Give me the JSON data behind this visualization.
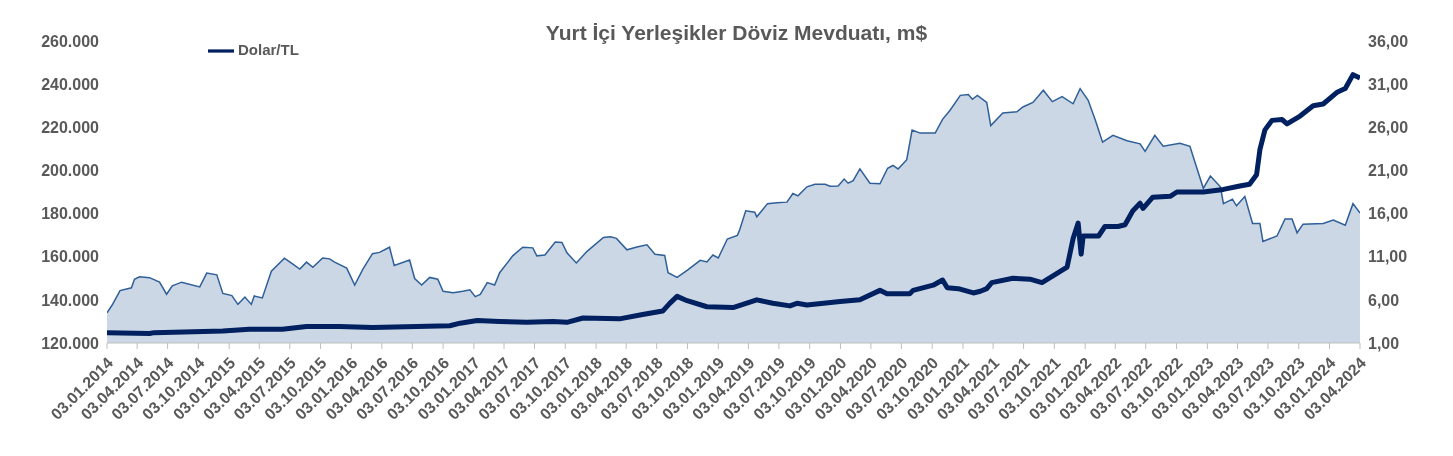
{
  "chart_data": {
    "type": "area",
    "title": "Yurt İçi Yerleşikler Döviz Mevduatı, m$",
    "legend": "top left",
    "grid": false,
    "xlim": [
      "2014-01-03",
      "2024-04-03"
    ],
    "xticks": [
      {
        "value": "2014-01-03",
        "label": "03.01.2014"
      },
      {
        "value": "2014-04-03",
        "label": "03.04.2014"
      },
      {
        "value": "2014-07-03",
        "label": "03.07.2014"
      },
      {
        "value": "2014-10-03",
        "label": "03.10.2014"
      },
      {
        "value": "2015-01-03",
        "label": "03.01.2015"
      },
      {
        "value": "2015-04-03",
        "label": "03.04.2015"
      },
      {
        "value": "2015-07-03",
        "label": "03.07.2015"
      },
      {
        "value": "2015-10-03",
        "label": "03.10.2015"
      },
      {
        "value": "2016-01-03",
        "label": "03.01.2016"
      },
      {
        "value": "2016-04-03",
        "label": "03.04.2016"
      },
      {
        "value": "2016-07-03",
        "label": "03.07.2016"
      },
      {
        "value": "2016-10-03",
        "label": "03.10.2016"
      },
      {
        "value": "2017-01-03",
        "label": "03.01.2017"
      },
      {
        "value": "2017-04-03",
        "label": "03.04.2017"
      },
      {
        "value": "2017-07-03",
        "label": "03.07.2017"
      },
      {
        "value": "2017-10-03",
        "label": "03.10.2017"
      },
      {
        "value": "2018-01-03",
        "label": "03.01.2018"
      },
      {
        "value": "2018-04-03",
        "label": "03.04.2018"
      },
      {
        "value": "2018-07-03",
        "label": "03.07.2018"
      },
      {
        "value": "2018-10-03",
        "label": "03.10.2018"
      },
      {
        "value": "2019-01-03",
        "label": "03.01.2019"
      },
      {
        "value": "2019-04-03",
        "label": "03.04.2019"
      },
      {
        "value": "2019-07-03",
        "label": "03.07.2019"
      },
      {
        "value": "2019-10-03",
        "label": "03.10.2019"
      },
      {
        "value": "2020-01-03",
        "label": "03.01.2020"
      },
      {
        "value": "2020-04-03",
        "label": "03.04.2020"
      },
      {
        "value": "2020-07-03",
        "label": "03.07.2020"
      },
      {
        "value": "2020-10-03",
        "label": "03.10.2020"
      },
      {
        "value": "2021-01-03",
        "label": "03.01.2021"
      },
      {
        "value": "2021-04-03",
        "label": "03.04.2021"
      },
      {
        "value": "2021-07-03",
        "label": "03.07.2021"
      },
      {
        "value": "2021-10-03",
        "label": "03.10.2021"
      },
      {
        "value": "2022-01-03",
        "label": "03.01.2022"
      },
      {
        "value": "2022-04-03",
        "label": "03.04.2022"
      },
      {
        "value": "2022-07-03",
        "label": "03.07.2022"
      },
      {
        "value": "2022-10-03",
        "label": "03.10.2022"
      },
      {
        "value": "2023-01-03",
        "label": "03.01.2023"
      },
      {
        "value": "2023-04-03",
        "label": "03.04.2023"
      },
      {
        "value": "2023-07-03",
        "label": "03.07.2023"
      },
      {
        "value": "2023-10-03",
        "label": "03.10.2023"
      },
      {
        "value": "2024-01-03",
        "label": "03.01.2024"
      },
      {
        "value": "2024-04-03",
        "label": "03.04.2024"
      }
    ],
    "ylim": [
      120000,
      260000
    ],
    "yticks": [
      {
        "value": 120000,
        "label": "120.000"
      },
      {
        "value": 140000,
        "label": "140.000"
      },
      {
        "value": 160000,
        "label": "160.000"
      },
      {
        "value": 180000,
        "label": "180.000"
      },
      {
        "value": 200000,
        "label": "200.000"
      },
      {
        "value": 220000,
        "label": "220.000"
      },
      {
        "value": 240000,
        "label": "240.000"
      },
      {
        "value": 260000,
        "label": "260.000"
      }
    ],
    "y2lim": [
      1,
      36
    ],
    "y2ticks": [
      {
        "value": 1,
        "label": "1,00"
      },
      {
        "value": 6,
        "label": "6,00"
      },
      {
        "value": 11,
        "label": "11,00"
      },
      {
        "value": 16,
        "label": "16,00"
      },
      {
        "value": 21,
        "label": "21,00"
      },
      {
        "value": 26,
        "label": "26,00"
      },
      {
        "value": 31,
        "label": "31,00"
      },
      {
        "value": 36,
        "label": "36,00"
      }
    ],
    "series": [
      {
        "color": "#2f5f98",
        "x": [
          "2014-01-03",
          "2014-01-18",
          "2014-02-11",
          "2014-03-17",
          "2014-03-26",
          "2014-04-10",
          "2014-05-10",
          "2014-06-09",
          "2014-06-30",
          "2014-07-17",
          "2014-08-14",
          "2014-10-07",
          "2014-10-28",
          "2014-11-27",
          "2014-12-15",
          "2015-01-11",
          "2015-01-29",
          "2015-02-19",
          "2015-03-10",
          "2015-03-19",
          "2015-04-12",
          "2015-05-09",
          "2015-06-17",
          "2015-07-08",
          "2015-08-02",
          "2015-08-22",
          "2015-09-10",
          "2015-10-09",
          "2015-10-30",
          "2015-11-14",
          "2015-12-20",
          "2016-01-13",
          "2016-02-06",
          "2016-03-06",
          "2016-03-27",
          "2016-04-26",
          "2016-05-10",
          "2016-06-25",
          "2016-07-10",
          "2016-07-31",
          "2016-08-24",
          "2016-09-17",
          "2016-10-03",
          "2016-11-02",
          "2016-12-01",
          "2016-12-22",
          "2017-01-07",
          "2017-01-22",
          "2017-02-12",
          "2017-03-06",
          "2017-03-21",
          "2017-04-29",
          "2017-05-29",
          "2017-06-28",
          "2017-07-10",
          "2017-08-03",
          "2017-09-03",
          "2017-09-23",
          "2017-10-08",
          "2017-11-05",
          "2017-12-07",
          "2018-01-25",
          "2018-02-15",
          "2018-03-05",
          "2018-04-05",
          "2018-05-05",
          "2018-06-04",
          "2018-06-28",
          "2018-07-27",
          "2018-08-06",
          "2018-09-02",
          "2018-10-02",
          "2018-11-10",
          "2018-11-30",
          "2018-12-18",
          "2019-01-03",
          "2019-01-30",
          "2019-03-01",
          "2019-03-08",
          "2019-03-26",
          "2019-04-22",
          "2019-04-28",
          "2019-05-13",
          "2019-05-30",
          "2019-06-27",
          "2019-07-27",
          "2019-08-14",
          "2019-08-29",
          "2019-09-25",
          "2019-10-19",
          "2019-11-18",
          "2019-12-03",
          "2019-12-27",
          "2020-01-14",
          "2020-01-26",
          "2020-02-10",
          "2020-03-01",
          "2020-03-31",
          "2020-04-30",
          "2020-05-23",
          "2020-06-08",
          "2020-06-23",
          "2020-07-08",
          "2020-07-19",
          "2020-08-04",
          "2020-08-28",
          "2020-10-12",
          "2020-11-03",
          "2020-11-26",
          "2020-12-26",
          "2021-01-19",
          "2021-01-31",
          "2021-02-15",
          "2021-03-15",
          "2021-03-27",
          "2021-05-02",
          "2021-06-13",
          "2021-07-01",
          "2021-07-31",
          "2021-08-31",
          "2021-09-27",
          "2021-10-26",
          "2021-11-28",
          "2021-12-19",
          "2022-01-12",
          "2022-02-03",
          "2022-02-24",
          "2022-03-27",
          "2022-05-08",
          "2022-06-16",
          "2022-07-01",
          "2022-07-30",
          "2022-08-24",
          "2022-10-13",
          "2022-11-12",
          "2022-11-27",
          "2022-12-22",
          "2023-01-12",
          "2023-02-11",
          "2023-02-20",
          "2023-03-19",
          "2023-03-31",
          "2023-04-25",
          "2023-05-18",
          "2023-06-09",
          "2023-06-18",
          "2023-07-30",
          "2023-08-23",
          "2023-09-13",
          "2023-09-28",
          "2023-10-16",
          "2023-12-15",
          "2024-01-14",
          "2024-02-19",
          "2024-03-13",
          "2024-04-03"
        ],
        "values": [
          134000,
          137500,
          144300,
          145600,
          149500,
          150700,
          150300,
          148200,
          142600,
          146500,
          148200,
          146000,
          152400,
          151600,
          143000,
          142000,
          137900,
          141300,
          137900,
          141800,
          140900,
          153300,
          159300,
          157000,
          154300,
          157500,
          155100,
          159400,
          159000,
          157500,
          154700,
          146900,
          154100,
          161400,
          162000,
          164400,
          155900,
          158500,
          149900,
          146900,
          150400,
          149600,
          144000,
          143300,
          144000,
          144700,
          141500,
          142500,
          148000,
          146900,
          152600,
          160400,
          164400,
          164100,
          160400,
          160800,
          166800,
          166600,
          161800,
          157100,
          162500,
          168900,
          169200,
          168500,
          163200,
          164500,
          165500,
          161100,
          160600,
          152600,
          150400,
          153700,
          158300,
          157600,
          160800,
          159400,
          168200,
          169900,
          172500,
          181300,
          180600,
          178500,
          181300,
          184600,
          185000,
          185300,
          189300,
          188200,
          192400,
          193600,
          193600,
          192700,
          192800,
          196000,
          194100,
          195300,
          200700,
          194100,
          193800,
          201000,
          202300,
          200700,
          203100,
          205000,
          218700,
          217300,
          217300,
          223700,
          228000,
          234800,
          235200,
          233000,
          234800,
          231500,
          220800,
          226600,
          227200,
          229400,
          231500,
          237200,
          231900,
          234200,
          230900,
          237900,
          232500,
          223000,
          213100,
          216300,
          213800,
          212300,
          208800,
          216300,
          211200,
          212600,
          211200,
          203800,
          191700,
          197400,
          192400,
          184600,
          186700,
          183600,
          187900,
          175400,
          175400,
          167100,
          169600,
          177500,
          177500,
          171100,
          175100,
          175400,
          177000,
          174600,
          184600,
          180300
        ]
      },
      {
        "type": "line",
        "name": "Dolar/TL",
        "color": "#002060",
        "axis": "y2",
        "x": [
          "2014-01-03",
          "2014-05-10",
          "2014-05-24",
          "2014-12-15",
          "2015-03-04",
          "2015-06-11",
          "2015-08-22",
          "2015-11-29",
          "2016-03-06",
          "2016-07-16",
          "2016-10-23",
          "2016-11-23",
          "2017-01-13",
          "2017-03-21",
          "2017-06-10",
          "2017-08-27",
          "2017-10-08",
          "2017-11-25",
          "2018-03-14",
          "2018-05-22",
          "2018-07-21",
          "2018-08-11",
          "2018-09-02",
          "2018-10-02",
          "2018-11-30",
          "2019-02-16",
          "2019-04-28",
          "2019-06-15",
          "2019-08-05",
          "2019-08-26",
          "2019-09-25",
          "2020-01-02",
          "2020-03-01",
          "2020-04-30",
          "2020-05-21",
          "2020-07-28",
          "2020-08-07",
          "2020-10-06",
          "2020-11-03",
          "2020-11-17",
          "2020-12-20",
          "2021-02-03",
          "2021-02-24",
          "2021-03-15",
          "2021-03-30",
          "2021-06-01",
          "2021-07-22",
          "2021-08-27",
          "2021-09-30",
          "2021-11-10",
          "2021-11-28",
          "2021-12-13",
          "2021-12-22",
          "2021-12-28",
          "2022-02-12",
          "2022-03-03",
          "2022-04-11",
          "2022-05-02",
          "2022-05-25",
          "2022-06-16",
          "2022-06-25",
          "2022-07-24",
          "2022-09-14",
          "2022-10-04",
          "2022-12-22",
          "2023-02-20",
          "2023-04-10",
          "2023-05-09",
          "2023-05-30",
          "2023-06-09",
          "2023-06-24",
          "2023-07-15",
          "2023-08-14",
          "2023-08-29",
          "2023-10-07",
          "2023-11-15",
          "2023-12-15",
          "2024-01-27",
          "2024-02-19",
          "2024-03-13",
          "2024-04-03"
        ],
        "values": [
          2.2,
          2.1,
          2.2,
          2.4,
          2.6,
          2.6,
          2.9,
          2.9,
          2.8,
          2.9,
          3.0,
          3.3,
          3.6,
          3.5,
          3.4,
          3.5,
          3.4,
          3.9,
          3.8,
          4.3,
          4.7,
          5.6,
          6.4,
          5.9,
          5.2,
          5.1,
          6.0,
          5.6,
          5.3,
          5.6,
          5.4,
          5.8,
          6.0,
          7.1,
          6.7,
          6.7,
          7.1,
          7.7,
          8.3,
          7.4,
          7.3,
          6.8,
          7.0,
          7.3,
          8.0,
          8.5,
          8.4,
          8.0,
          8.8,
          9.8,
          13.1,
          14.9,
          11.3,
          13.4,
          13.4,
          14.5,
          14.5,
          14.7,
          16.3,
          17.2,
          16.6,
          17.9,
          18.0,
          18.5,
          18.5,
          18.8,
          19.2,
          19.4,
          20.5,
          23.4,
          25.7,
          26.8,
          26.9,
          26.4,
          27.3,
          28.5,
          28.7,
          30.1,
          30.5,
          32.1,
          31.7
        ]
      }
    ]
  }
}
